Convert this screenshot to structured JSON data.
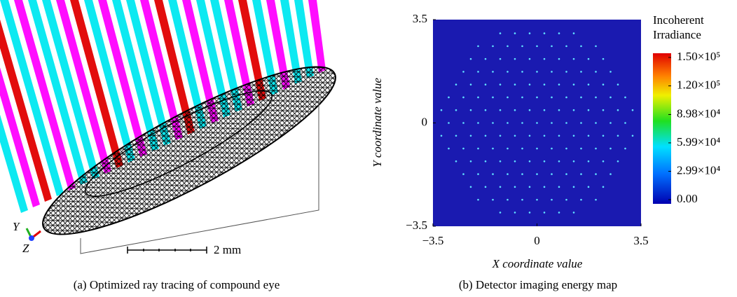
{
  "panel_a": {
    "caption": "(a) Optimized ray tracing of compound eye",
    "scale_bar_label": "2 mm",
    "axis_labels": [
      "Y",
      "Z"
    ]
  },
  "panel_b": {
    "type": "heatmap",
    "xlabel": "X coordinate value",
    "ylabel": "Y coordinate value",
    "xlim": [
      -3.5,
      3.5
    ],
    "ylim": [
      -3.5,
      3.5
    ],
    "xticks": [
      {
        "value": -3.5,
        "label": "−3.5"
      },
      0,
      3.5
    ],
    "yticks": [
      {
        "value": -3.5,
        "label": "−3.5"
      },
      0,
      3.5
    ],
    "background_color": "#1a1ab0",
    "colorbar": {
      "title": [
        "Incoherent",
        "Irradiance"
      ],
      "lim": [
        0,
        150000
      ],
      "ticks": [
        {
          "value": 0,
          "label": "0.00"
        },
        {
          "value": 29900,
          "label": "2.99×10⁴"
        },
        {
          "value": 59900,
          "label": "5.99×10⁴"
        },
        {
          "value": 89800,
          "label": "8.98×10⁴"
        },
        {
          "value": 120000,
          "label": "1.20×10⁵"
        },
        {
          "value": 150000,
          "label": "1.50×10⁵"
        }
      ]
    },
    "caption": "(b) Detector imaging energy map"
  }
}
